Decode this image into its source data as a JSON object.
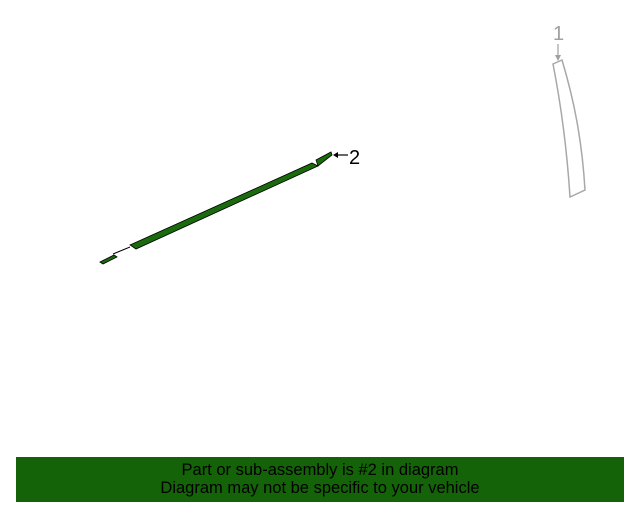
{
  "diagram": {
    "callouts": [
      {
        "number": "1",
        "part": "pillar-trim"
      },
      {
        "number": "2",
        "part": "belt-molding"
      }
    ],
    "highlight_color": "#1a6b0c"
  },
  "banner": {
    "line1": "Part or sub-assembly is #2 in diagram",
    "line2": "Diagram may not be specific to your vehicle",
    "background": "#156308"
  }
}
